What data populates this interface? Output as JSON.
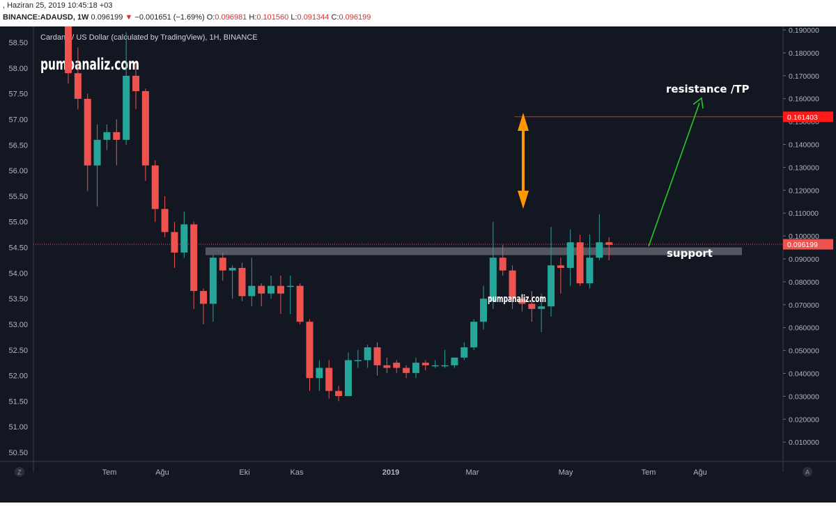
{
  "header": {
    "timestamp": ", Haziran 25, 2019 10:45:18 +03",
    "symbol": "BINANCE:ADAUSD, 1W",
    "last": "0.096199",
    "change": "−0.001651 (−1.69%)",
    "open_label": "O:",
    "open": "0.096981",
    "high_label": "H:",
    "high": "0.101560",
    "low_label": "L:",
    "low": "0.091344",
    "close_label": "C:",
    "close": "0.096199"
  },
  "colors": {
    "background": "#131722",
    "up": "#26a69a",
    "down": "#ef5350",
    "resistance": "#ff1a1a",
    "arrow_up": "#22cc22",
    "double_arrow": "#ff9800",
    "support_band": "#6b6e78"
  },
  "chart_data": {
    "type": "candlestick",
    "title": "Cardano / US Dollar (calculated by TradingView), 1H, BINANCE",
    "watermark": "pumpanaliz.com",
    "left_axis": {
      "ticks": [
        "58.50",
        "58.00",
        "57.50",
        "57.00",
        "56.50",
        "56.00",
        "55.50",
        "55.00",
        "54.50",
        "54.00",
        "53.50",
        "53.00",
        "52.50",
        "52.00",
        "51.50",
        "51.00",
        "50.50"
      ]
    },
    "right_axis": {
      "ticks": [
        "0.190000",
        "0.180000",
        "0.170000",
        "0.160000",
        "0.150000",
        "0.140000",
        "0.130000",
        "0.120000",
        "0.110000",
        "0.100000",
        "0.090000",
        "0.080000",
        "0.070000",
        "0.060000",
        "0.050000",
        "0.040000",
        "0.030000",
        "0.020000",
        "0.010000"
      ]
    },
    "x_axis": {
      "ticks": [
        "Tem",
        "Ağu",
        "Eki",
        "Kas",
        "2019",
        "Mar",
        "May",
        "Tem",
        "Ağu"
      ],
      "corner_left": "Z",
      "corner_right": "A"
    },
    "y_range": [
      50.2,
      58.9
    ],
    "candles": [
      {
        "o": 58.9,
        "h": 58.9,
        "l": 57.7,
        "c": 57.9
      },
      {
        "o": 57.9,
        "h": 58.4,
        "l": 57.2,
        "c": 57.4
      },
      {
        "o": 57.4,
        "h": 57.5,
        "l": 55.6,
        "c": 56.1
      },
      {
        "o": 56.1,
        "h": 56.9,
        "l": 55.3,
        "c": 56.6
      },
      {
        "o": 56.6,
        "h": 56.9,
        "l": 56.4,
        "c": 56.75
      },
      {
        "o": 56.75,
        "h": 57.0,
        "l": 56.1,
        "c": 56.6
      },
      {
        "o": 56.6,
        "h": 58.7,
        "l": 56.5,
        "c": 57.85
      },
      {
        "o": 57.85,
        "h": 58.1,
        "l": 57.2,
        "c": 57.55
      },
      {
        "o": 57.55,
        "h": 57.6,
        "l": 55.8,
        "c": 56.1
      },
      {
        "o": 56.1,
        "h": 56.2,
        "l": 55.0,
        "c": 55.25
      },
      {
        "o": 55.25,
        "h": 55.5,
        "l": 54.7,
        "c": 54.8
      },
      {
        "o": 54.8,
        "h": 55.0,
        "l": 54.1,
        "c": 54.4
      },
      {
        "o": 54.4,
        "h": 55.2,
        "l": 54.3,
        "c": 54.95
      },
      {
        "o": 54.95,
        "h": 55.0,
        "l": 53.3,
        "c": 53.65
      },
      {
        "o": 53.65,
        "h": 53.7,
        "l": 53.0,
        "c": 53.4
      },
      {
        "o": 53.4,
        "h": 54.35,
        "l": 53.05,
        "c": 54.3
      },
      {
        "o": 54.3,
        "h": 54.4,
        "l": 53.85,
        "c": 54.05
      },
      {
        "o": 54.05,
        "h": 54.15,
        "l": 53.5,
        "c": 54.1
      },
      {
        "o": 54.1,
        "h": 54.2,
        "l": 53.45,
        "c": 53.55
      },
      {
        "o": 53.55,
        "h": 54.3,
        "l": 53.35,
        "c": 53.75
      },
      {
        "o": 53.75,
        "h": 53.8,
        "l": 53.35,
        "c": 53.6
      },
      {
        "o": 53.6,
        "h": 53.95,
        "l": 53.5,
        "c": 53.75
      },
      {
        "o": 53.75,
        "h": 53.95,
        "l": 53.2,
        "c": 53.6
      },
      {
        "o": 53.75,
        "h": 53.95,
        "l": 53.2,
        "c": 53.75
      },
      {
        "o": 53.75,
        "h": 53.8,
        "l": 53.0,
        "c": 53.05
      },
      {
        "o": 53.05,
        "h": 53.1,
        "l": 51.7,
        "c": 51.95
      },
      {
        "o": 51.95,
        "h": 52.3,
        "l": 51.7,
        "c": 52.15
      },
      {
        "o": 52.15,
        "h": 52.3,
        "l": 51.55,
        "c": 51.7
      },
      {
        "o": 51.7,
        "h": 51.8,
        "l": 51.5,
        "c": 51.6
      },
      {
        "o": 51.6,
        "h": 52.45,
        "l": 51.6,
        "c": 52.3
      },
      {
        "o": 52.3,
        "h": 52.5,
        "l": 52.15,
        "c": 52.3
      },
      {
        "o": 52.3,
        "h": 52.6,
        "l": 52.15,
        "c": 52.55
      },
      {
        "o": 52.55,
        "h": 52.65,
        "l": 52.0,
        "c": 52.2
      },
      {
        "o": 52.2,
        "h": 52.35,
        "l": 52.05,
        "c": 52.15
      },
      {
        "o": 52.25,
        "h": 52.3,
        "l": 52.05,
        "c": 52.15
      },
      {
        "o": 52.15,
        "h": 52.2,
        "l": 51.95,
        "c": 52.05
      },
      {
        "o": 52.05,
        "h": 52.35,
        "l": 51.95,
        "c": 52.25
      },
      {
        "o": 52.25,
        "h": 52.3,
        "l": 52.1,
        "c": 52.2
      },
      {
        "o": 52.2,
        "h": 52.3,
        "l": 52.15,
        "c": 52.2
      },
      {
        "o": 52.2,
        "h": 52.5,
        "l": 52.15,
        "c": 52.2
      },
      {
        "o": 52.2,
        "h": 52.35,
        "l": 52.15,
        "c": 52.35
      },
      {
        "o": 52.35,
        "h": 52.65,
        "l": 52.3,
        "c": 52.55
      },
      {
        "o": 52.55,
        "h": 53.1,
        "l": 52.5,
        "c": 53.05
      },
      {
        "o": 53.05,
        "h": 53.75,
        "l": 52.9,
        "c": 53.5
      },
      {
        "o": 53.45,
        "h": 55.0,
        "l": 53.3,
        "c": 54.3
      },
      {
        "o": 54.3,
        "h": 54.55,
        "l": 53.95,
        "c": 54.05
      },
      {
        "o": 54.05,
        "h": 54.15,
        "l": 53.3,
        "c": 53.5
      },
      {
        "o": 53.5,
        "h": 53.6,
        "l": 53.25,
        "c": 53.4
      },
      {
        "o": 53.4,
        "h": 53.65,
        "l": 53.05,
        "c": 53.3
      },
      {
        "o": 53.3,
        "h": 53.6,
        "l": 52.85,
        "c": 53.35
      },
      {
        "o": 53.35,
        "h": 54.9,
        "l": 53.15,
        "c": 54.15
      },
      {
        "o": 54.15,
        "h": 54.3,
        "l": 53.6,
        "c": 54.1
      },
      {
        "o": 54.1,
        "h": 54.85,
        "l": 53.75,
        "c": 54.6
      },
      {
        "o": 54.6,
        "h": 54.75,
        "l": 53.75,
        "c": 53.8
      },
      {
        "o": 53.8,
        "h": 54.75,
        "l": 53.7,
        "c": 54.3
      },
      {
        "o": 54.3,
        "h": 55.15,
        "l": 54.25,
        "c": 54.6
      },
      {
        "o": 54.6,
        "h": 54.7,
        "l": 54.25,
        "c": 54.55
      }
    ],
    "last_price_label": "0.096199",
    "resistance": {
      "label": "resistance /TP",
      "price_label": "0.161403",
      "value": 57.05
    },
    "support": {
      "label": "support",
      "low": 54.35,
      "high": 54.5
    },
    "watermark_small": "pumpanaliz.com"
  }
}
